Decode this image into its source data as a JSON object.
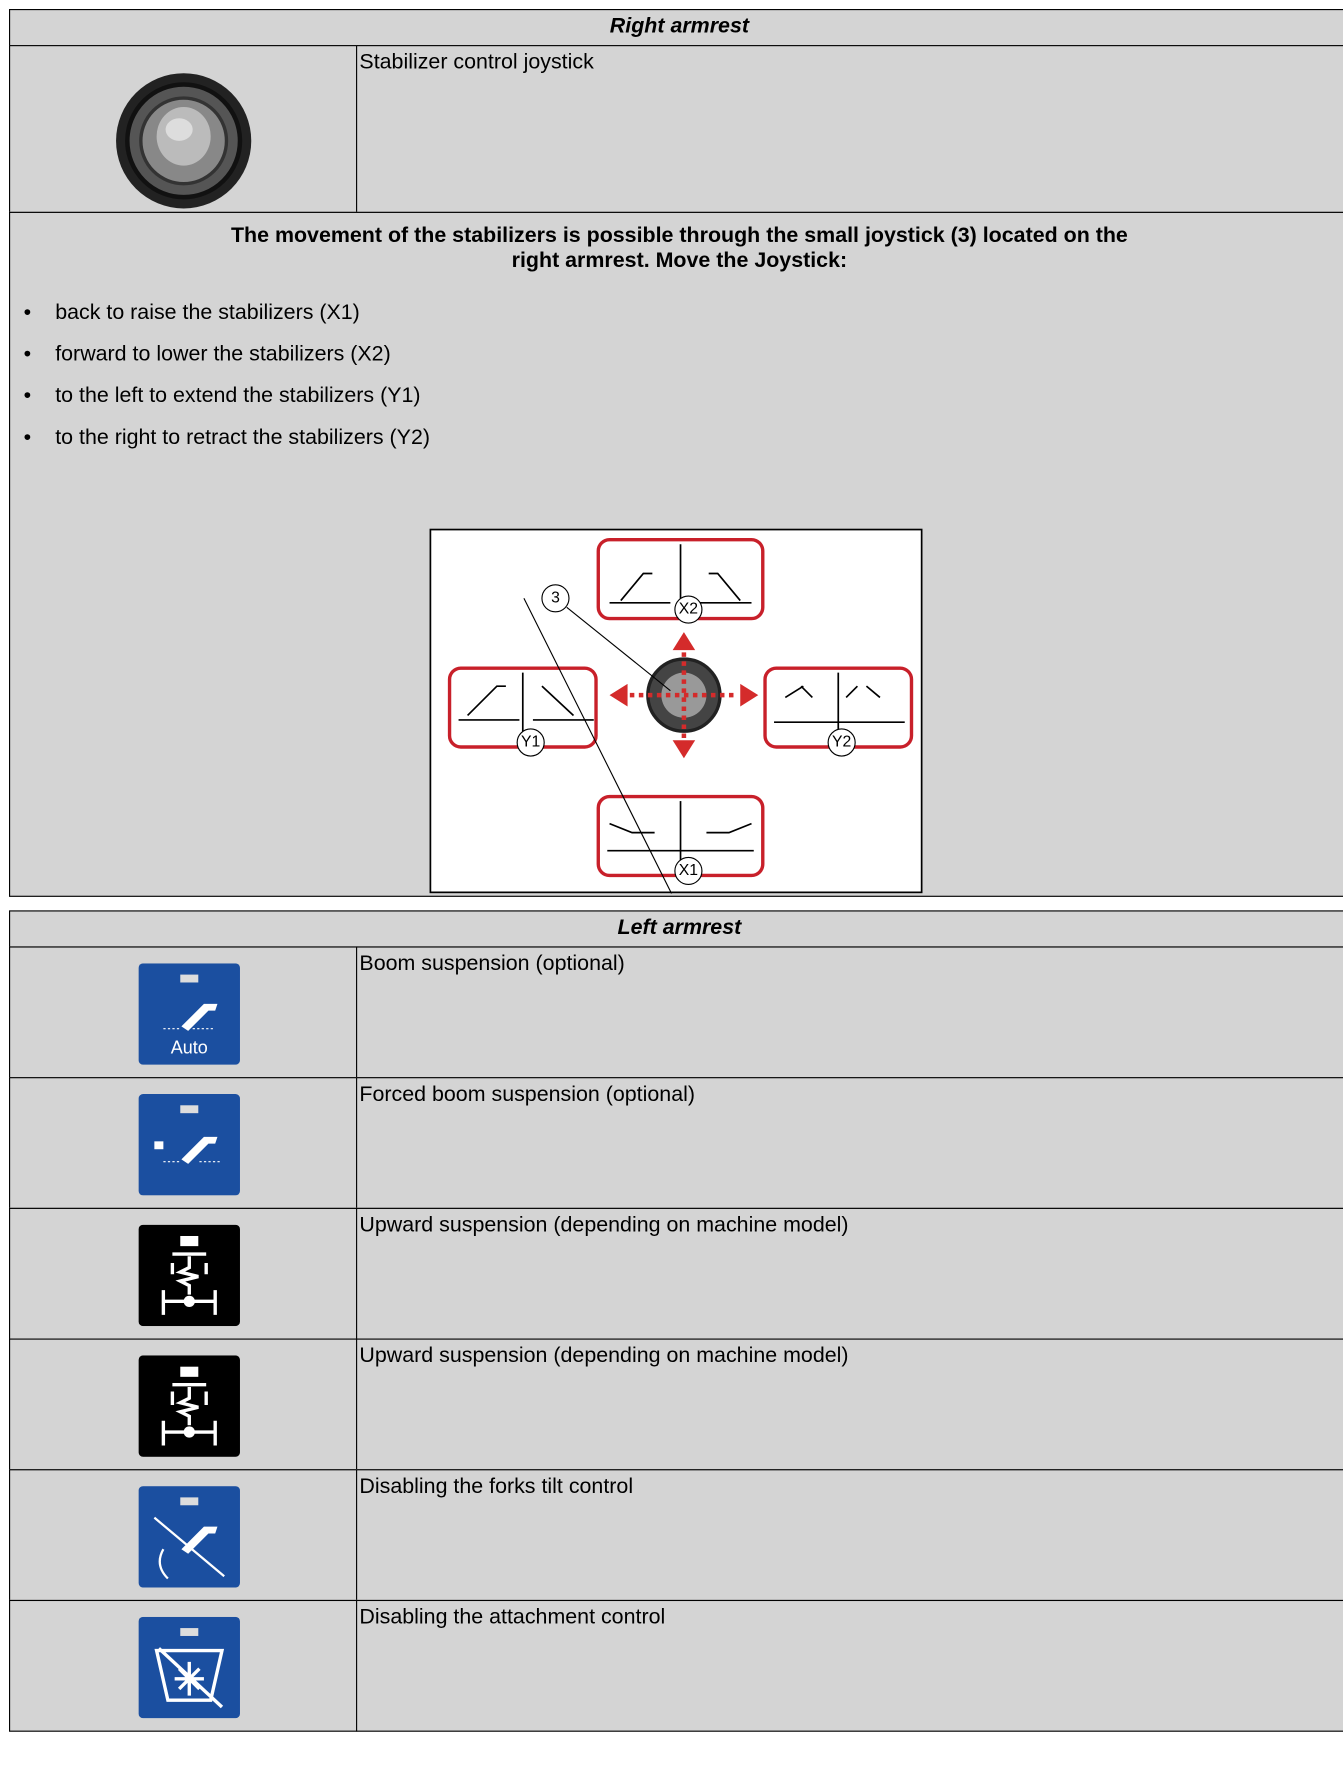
{
  "right_armrest": {
    "title": "Right armrest",
    "rows": [
      {
        "description": "Stabilizer control joystick"
      }
    ],
    "instruction": "The movement of the stabilizers is possible through the small joystick (3) located on the right armrest. Move the Joystick:",
    "bullets": [
      "back to raise the stabilizers (X1)",
      "forward to lower the stabilizers (X2)",
      "to the left to extend the stabilizers (Y1)",
      "to the right to retract the stabilizers (Y2)"
    ],
    "diagram": {
      "callout": "3",
      "labels": [
        "X2",
        "Y1",
        "Y2",
        "X1"
      ]
    }
  },
  "left_armrest": {
    "title": "Left armrest",
    "icon_text": "Auto",
    "rows": [
      {
        "description": "Boom suspension (optional)"
      },
      {
        "description": "Forced boom suspension (optional)"
      },
      {
        "description": "Upward suspension (depending on machine model)"
      },
      {
        "description": "Upward suspension (depending on machine model)"
      },
      {
        "description": "Disabling the forks tilt control"
      },
      {
        "description": "Disabling the attachment control"
      }
    ]
  }
}
